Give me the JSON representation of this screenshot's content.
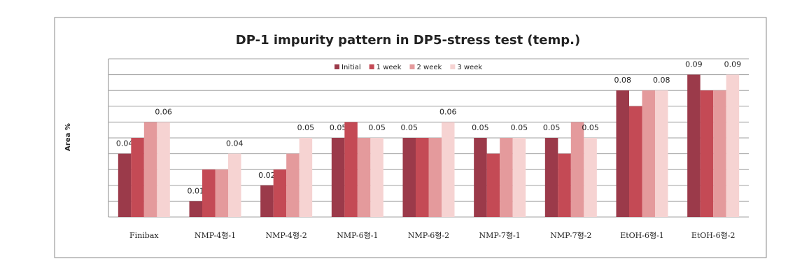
{
  "chart_data": {
    "type": "bar",
    "title": "DP-1 impurity pattern in DP5-stress test (temp.)",
    "y_label": "Area %",
    "categories": [
      "Finibax",
      "NMP-4형-1",
      "NMP-4형-2",
      "NMP-6형-1",
      "NMP-6형-2",
      "NMP-7형-1",
      "NMP-7형-2",
      "EtOH-6형-1",
      "EtOH-6형-2"
    ],
    "series": [
      {
        "name": "Initial",
        "color": "#9b3a4a",
        "show_labels": true,
        "values": [
          0.04,
          0.01,
          0.02,
          0.05,
          0.05,
          0.05,
          0.05,
          0.08,
          0.09
        ]
      },
      {
        "name": "1 week",
        "color": "#c44a55",
        "show_labels": false,
        "values": [
          0.05,
          0.03,
          0.03,
          0.06,
          0.05,
          0.04,
          0.04,
          0.07,
          0.08
        ]
      },
      {
        "name": "2 week",
        "color": "#e49a9c",
        "show_labels": false,
        "values": [
          0.06,
          0.03,
          0.04,
          0.05,
          0.05,
          0.05,
          0.06,
          0.08,
          0.08
        ]
      },
      {
        "name": "3 week",
        "color": "#f6d3d2",
        "show_labels": true,
        "values": [
          0.06,
          0.04,
          0.05,
          0.05,
          0.06,
          0.05,
          0.05,
          0.08,
          0.09
        ]
      }
    ],
    "ylim": [
      0,
      0.1
    ],
    "yticks": [
      0,
      0.01,
      0.02,
      0.03,
      0.04,
      0.05,
      0.06,
      0.07,
      0.08,
      0.09,
      0.1
    ],
    "grid": true,
    "legend": "top"
  }
}
